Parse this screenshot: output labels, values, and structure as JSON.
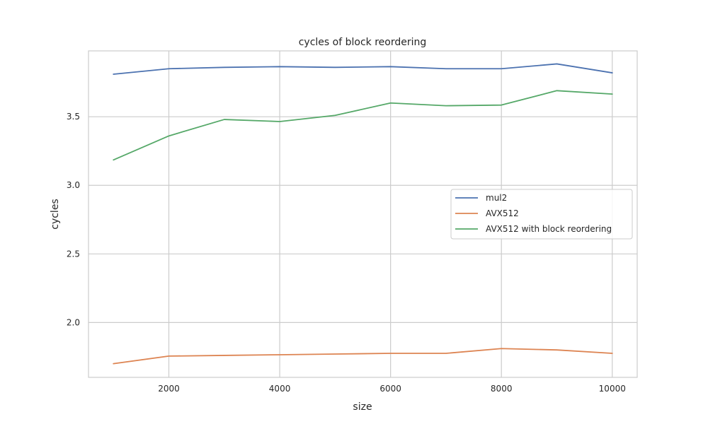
{
  "chart_data": {
    "type": "line",
    "title": "cycles of block reordering",
    "xlabel": "size",
    "ylabel": "cycles",
    "x": [
      1000,
      2000,
      3000,
      4000,
      5000,
      6000,
      7000,
      8000,
      9000,
      10000
    ],
    "xlim": [
      550,
      10450
    ],
    "ylim": [
      1.6,
      3.98
    ],
    "xticks": [
      2000,
      4000,
      6000,
      8000,
      10000
    ],
    "yticks": [
      2.0,
      2.5,
      3.0,
      3.5
    ],
    "xtick_labels": [
      "2000",
      "4000",
      "6000",
      "8000",
      "10000"
    ],
    "ytick_labels": [
      "2.0",
      "2.5",
      "3.0",
      "3.5"
    ],
    "grid": true,
    "legend_position": "center-right",
    "series": [
      {
        "name": "mul2",
        "color": "#4c72b0",
        "values": [
          3.81,
          3.85,
          3.86,
          3.865,
          3.86,
          3.865,
          3.85,
          3.85,
          3.885,
          3.82
        ]
      },
      {
        "name": "AVX512",
        "color": "#dd8452",
        "values": [
          1.7,
          1.755,
          1.76,
          1.765,
          1.77,
          1.775,
          1.775,
          1.81,
          1.8,
          1.775
        ]
      },
      {
        "name": "AVX512 with block reordering",
        "color": "#55a868",
        "values": [
          3.185,
          3.36,
          3.48,
          3.465,
          3.51,
          3.6,
          3.58,
          3.585,
          3.69,
          3.665
        ]
      }
    ]
  }
}
